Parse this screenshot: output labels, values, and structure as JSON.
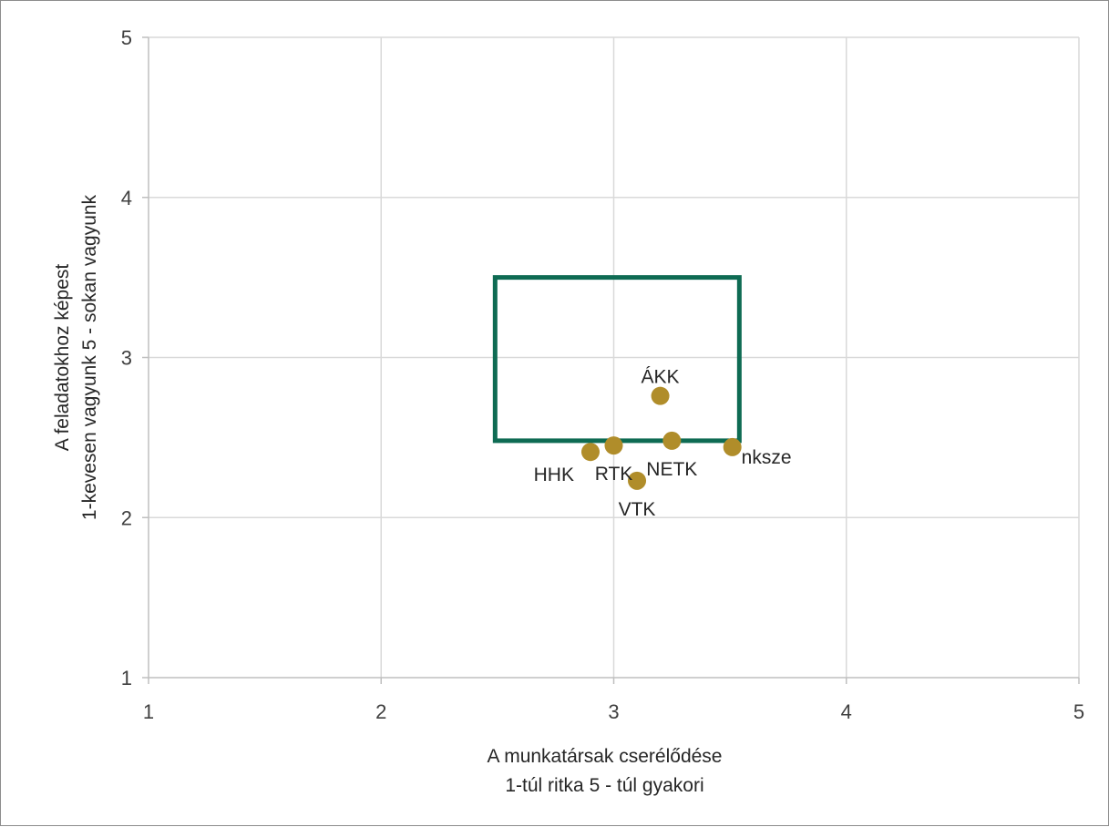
{
  "chart_data": {
    "type": "scatter",
    "xlabel": [
      "A munkatársak cserélődése",
      "1-túl ritka 5 - túl gyakori"
    ],
    "ylabel": [
      "A feladatokhoz képest",
      "1-kevesen vagyunk 5 - sokan vagyunk"
    ],
    "xlim": [
      1,
      5
    ],
    "ylim": [
      1,
      5
    ],
    "xticks": [
      "1",
      "2",
      "3",
      "4",
      "5"
    ],
    "yticks": [
      "1",
      "2",
      "3",
      "4",
      "5"
    ],
    "grid": true,
    "legend": "none",
    "point_color": "#b08d2a",
    "box_color": "#0e6b53",
    "target_box": {
      "x0": 2.49,
      "x1": 3.54,
      "y0": 2.48,
      "y1": 3.5
    },
    "points": [
      {
        "label": "ÁKK",
        "x": 3.2,
        "y": 2.76,
        "label_pos": "above"
      },
      {
        "label": "NETK",
        "x": 3.25,
        "y": 2.48,
        "label_pos": "below"
      },
      {
        "label": "RTK",
        "x": 3.0,
        "y": 2.45,
        "label_pos": "below"
      },
      {
        "label": "HHK",
        "x": 2.9,
        "y": 2.41,
        "label_pos": "below-left"
      },
      {
        "label": "nksze",
        "x": 3.51,
        "y": 2.44,
        "label_pos": "right"
      },
      {
        "label": "VTK",
        "x": 3.1,
        "y": 2.23,
        "label_pos": "below"
      }
    ]
  }
}
